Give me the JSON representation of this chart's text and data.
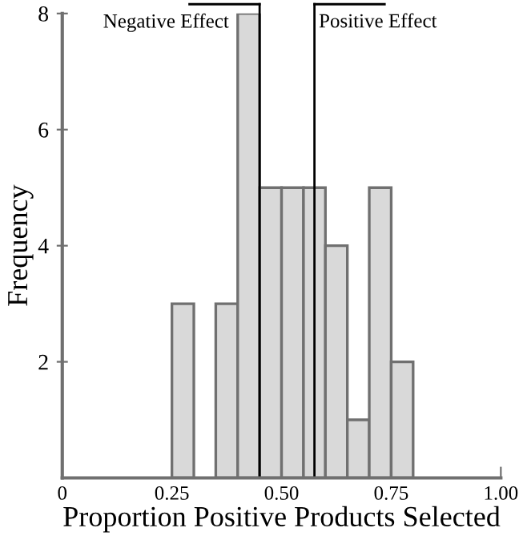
{
  "chart_data": {
    "type": "histogram",
    "xlabel": "Proportion Positive Products Selected",
    "ylabel": "Frequency",
    "bins": [
      0.25,
      0.3,
      0.35,
      0.4,
      0.45,
      0.5,
      0.55,
      0.6,
      0.65,
      0.7,
      0.75,
      0.8
    ],
    "values": [
      3,
      0,
      3,
      8,
      5,
      5,
      5,
      4,
      1,
      5,
      2
    ],
    "color": "#d9d9d9",
    "xlim": [
      0,
      1.0
    ],
    "ylim": [
      0,
      8
    ],
    "xticks": [
      0,
      0.25,
      {
        "value": 0.5,
        "label": "0.50"
      },
      0.75,
      {
        "value": 1.0,
        "label": "1.00"
      }
    ],
    "yticks": [
      2,
      4,
      6,
      8
    ],
    "ref_lines": [
      {
        "axis": "x",
        "value": 0.45,
        "label": "Negative Effect"
      },
      {
        "axis": "x",
        "value": 0.575,
        "label": "Positive Effect"
      }
    ],
    "grid": false
  }
}
